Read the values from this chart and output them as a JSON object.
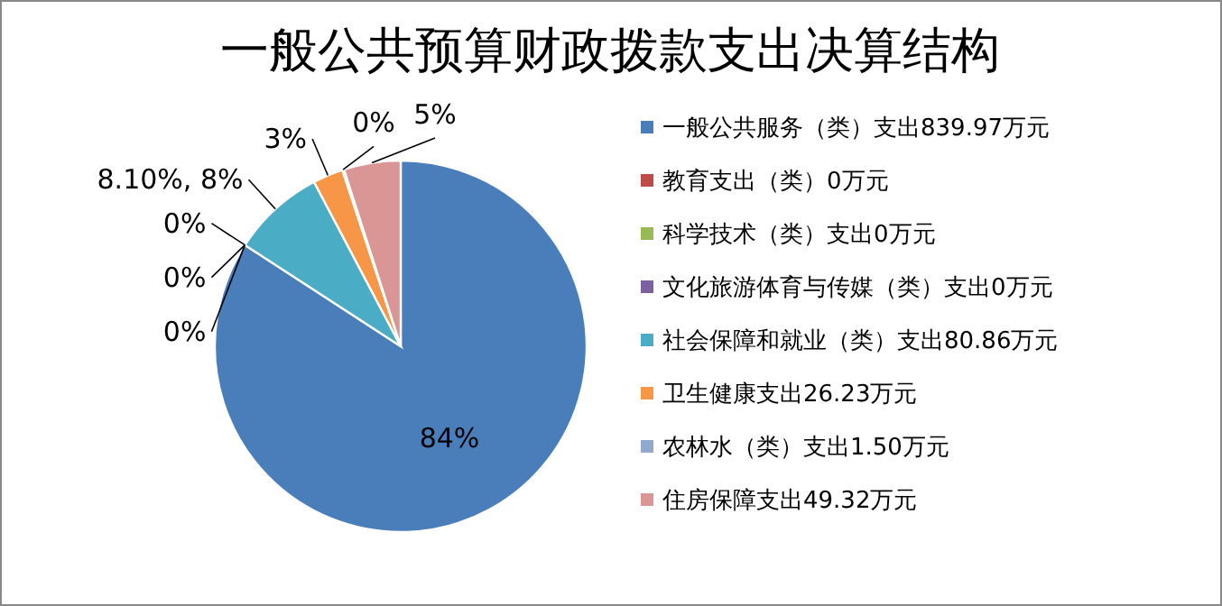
{
  "chart_data": {
    "type": "pie",
    "title": "一般公共预算财政拨款支出决算结构",
    "categories": [
      "一般公共服务（类）支出839.97万元",
      "教育支出（类）0万元",
      "科学技术（类）支出0万元",
      "文化旅游体育与传媒（类）支出0万元",
      "社会保障和就业（类）支出80.86万元",
      "卫生健康支出26.23万元",
      "农林水（类）支出1.50万元",
      "住房保障支出49.32万元"
    ],
    "values": [
      84.18,
      0,
      0,
      0,
      8.1,
      2.63,
      0.15,
      4.94
    ],
    "value_labels": [
      "84%",
      "0%",
      "0%",
      "0%",
      "8.10%, 8%",
      "3%",
      "0%",
      "5%"
    ],
    "colors": [
      "#4a7ebb",
      "#be4b48",
      "#98b954",
      "#7d60a0",
      "#4bacc6",
      "#f79646",
      "#92a9cf",
      "#d99694"
    ],
    "legend": "right"
  }
}
